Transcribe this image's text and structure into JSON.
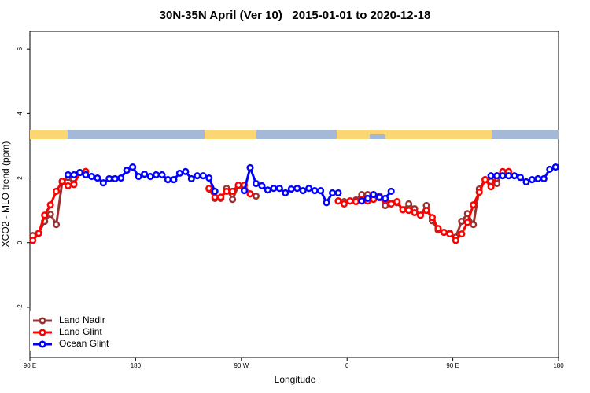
{
  "chart_data": {
    "type": "line",
    "title": "30N-35N April (Ver 10)   2015-01-01 to 2020-12-18",
    "x_label": "Longitude",
    "y_label": "XCO2 - MLO trend (ppm)",
    "xlim": [
      90,
      540
    ],
    "ylim": [
      -3.56,
      6.54
    ],
    "xticks": [
      {
        "value": 90,
        "label": "90 E"
      },
      180,
      {
        "value": 270,
        "label": "90 W"
      },
      {
        "value": 360,
        "label": "0"
      },
      {
        "value": 450,
        "label": "90 E"
      },
      {
        "value": 540,
        "label": "180"
      }
    ],
    "yticks": [
      -2,
      0,
      2,
      4,
      6
    ],
    "legend": "bottom-left",
    "series": [
      {
        "name": "Land Nadir",
        "color": "#993333",
        "x": [
          92.5,
          97.5,
          102.5,
          107.5,
          112.5,
          117.5,
          122.5,
          127.5,
          132.5,
          137.5,
          142.5,
          242.5,
          247.5,
          252.5,
          257.5,
          262.5,
          267.5,
          272.5,
          277.5,
          282.5,
          287.5,
          352.5,
          357.5,
          362.5,
          367.5,
          372.5,
          377.5,
          382.5,
          387.5,
          392.5,
          397.5,
          402.5,
          407.5,
          412.5,
          417.5,
          422.5,
          427.5,
          432.5,
          437.5,
          442.5,
          447.5,
          452.5,
          457.5,
          462.5,
          467.5,
          472.5,
          477.5,
          482.5,
          487.5,
          492.5,
          497.5
        ],
        "values": [
          0.22,
          0.29,
          0.66,
          0.88,
          0.56,
          1.88,
          2.02,
          1.83,
          2.17,
          2.2,
          null,
          1.66,
          1.37,
          1.37,
          1.68,
          1.34,
          1.76,
          1.66,
          1.51,
          1.44,
          null,
          1.29,
          1.27,
          1.29,
          1.32,
          1.49,
          1.49,
          1.37,
          1.44,
          1.15,
          1.22,
          1.24,
          1.02,
          1.2,
          1.05,
          0.85,
          1.15,
          0.68,
          0.39,
          0.32,
          0.29,
          0.17,
          0.66,
          0.9,
          0.56,
          1.66,
          1.95,
          1.9,
          1.83,
          2.2,
          2.2
        ]
      },
      {
        "name": "Land Glint",
        "color": "#ff0000",
        "x": [
          92.5,
          97.5,
          102.5,
          107.5,
          112.5,
          117.5,
          122.5,
          127.5,
          132.5,
          137.5,
          142.5,
          242.5,
          247.5,
          252.5,
          257.5,
          262.5,
          267.5,
          272.5,
          277.5,
          282.5,
          352.5,
          357.5,
          362.5,
          367.5,
          372.5,
          377.5,
          382.5,
          387.5,
          392.5,
          397.5,
          402.5,
          407.5,
          412.5,
          417.5,
          422.5,
          427.5,
          432.5,
          437.5,
          442.5,
          447.5,
          452.5,
          457.5,
          462.5,
          467.5,
          472.5,
          477.5,
          482.5,
          487.5,
          492.5,
          497.5
        ],
        "values": [
          0.07,
          0.29,
          0.85,
          1.17,
          1.59,
          1.9,
          1.76,
          1.8,
          2.17,
          2.2,
          null,
          1.68,
          1.41,
          1.41,
          1.59,
          1.59,
          1.78,
          1.78,
          1.51,
          null,
          1.29,
          1.2,
          1.29,
          1.27,
          1.34,
          1.29,
          1.34,
          1.39,
          1.32,
          1.2,
          1.27,
          1.02,
          1.0,
          0.93,
          0.85,
          1.0,
          0.78,
          0.44,
          0.32,
          0.27,
          0.07,
          0.27,
          0.63,
          1.17,
          1.56,
          1.95,
          1.73,
          2.07,
          2.2,
          2.2
        ]
      },
      {
        "name": "Ocean Glint",
        "color": "#0000ff",
        "x": [
          122.5,
          127.5,
          132.5,
          137.5,
          142.5,
          147.5,
          152.5,
          157.5,
          162.5,
          167.5,
          172.5,
          177.5,
          182.5,
          187.5,
          192.5,
          197.5,
          202.5,
          207.5,
          212.5,
          217.5,
          222.5,
          227.5,
          232.5,
          237.5,
          242.5,
          247.5,
          252.5,
          272.5,
          277.5,
          282.5,
          287.5,
          292.5,
          297.5,
          302.5,
          307.5,
          312.5,
          317.5,
          322.5,
          327.5,
          332.5,
          337.5,
          342.5,
          347.5,
          352.5,
          357.5,
          372.5,
          377.5,
          382.5,
          387.5,
          392.5,
          397.5,
          402.5,
          482.5,
          487.5,
          492.5,
          497.5,
          502.5,
          507.5,
          512.5,
          517.5,
          522.5,
          527.5,
          532.5,
          537.5
        ],
        "values": [
          2.1,
          2.1,
          2.17,
          2.1,
          2.05,
          2.0,
          1.85,
          1.98,
          1.98,
          2.0,
          2.24,
          2.34,
          2.05,
          2.12,
          2.05,
          2.1,
          2.1,
          1.95,
          1.95,
          2.15,
          2.2,
          1.98,
          2.07,
          2.07,
          2.0,
          1.59,
          null,
          1.61,
          2.32,
          1.83,
          1.76,
          1.63,
          1.68,
          1.68,
          1.54,
          1.66,
          1.68,
          1.61,
          1.68,
          1.61,
          1.61,
          1.24,
          1.54,
          1.54,
          null,
          1.29,
          1.37,
          1.49,
          1.41,
          1.37,
          1.59,
          null,
          2.07,
          2.07,
          2.07,
          2.07,
          2.07,
          2.02,
          1.88,
          1.95,
          1.98,
          1.98,
          2.27,
          2.34
        ]
      }
    ]
  }
}
